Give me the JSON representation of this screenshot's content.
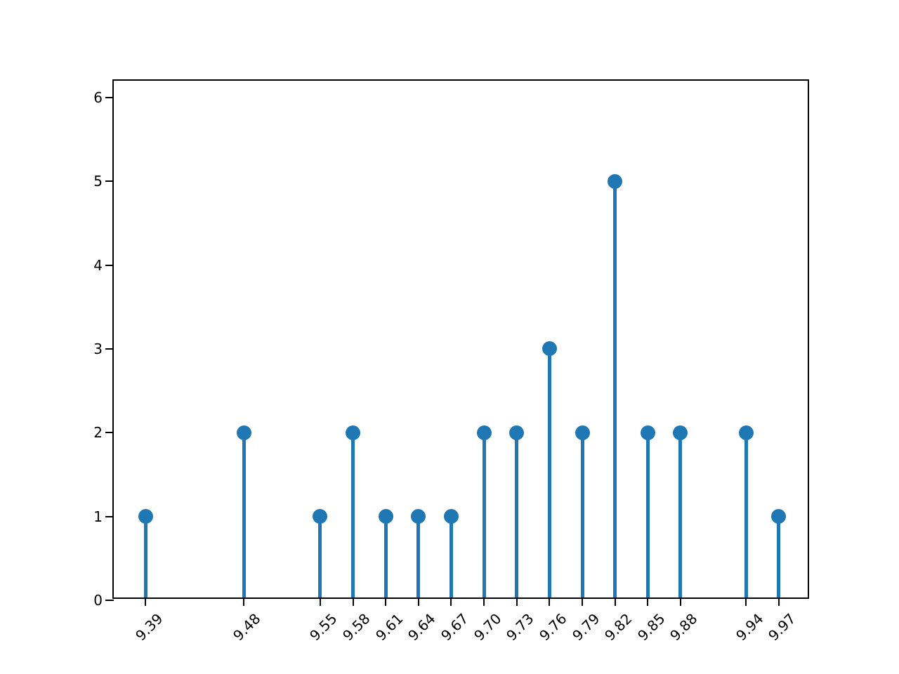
{
  "chart_data": {
    "type": "stem",
    "title": "",
    "xlabel": "",
    "ylabel": "",
    "x": [
      9.39,
      9.48,
      9.55,
      9.58,
      9.61,
      9.64,
      9.67,
      9.7,
      9.73,
      9.76,
      9.79,
      9.82,
      9.85,
      9.88,
      9.94,
      9.97
    ],
    "values": [
      1,
      2,
      1,
      2,
      1,
      1,
      1,
      2,
      2,
      3,
      2,
      5,
      2,
      2,
      2,
      1
    ],
    "x_tick_labels": [
      "9.39",
      "9.48",
      "9.55",
      "9.58",
      "9.61",
      "9.64",
      "9.67",
      "9.70",
      "9.73",
      "9.76",
      "9.79",
      "9.82",
      "9.85",
      "9.88",
      "9.94",
      "9.97"
    ],
    "y_tick_labels": [
      "0",
      "1",
      "2",
      "3",
      "4",
      "5",
      "6"
    ],
    "y_ticks": [
      0,
      1,
      2,
      3,
      4,
      5,
      6
    ],
    "xlim": [
      9.361,
      9.999
    ],
    "ylim": [
      0,
      6.2
    ],
    "grid": false,
    "legend": null,
    "stem_color": "#1f77b4",
    "marker_color": "#1f77b4",
    "spine_color": "#000000",
    "text_color": "#000000"
  }
}
